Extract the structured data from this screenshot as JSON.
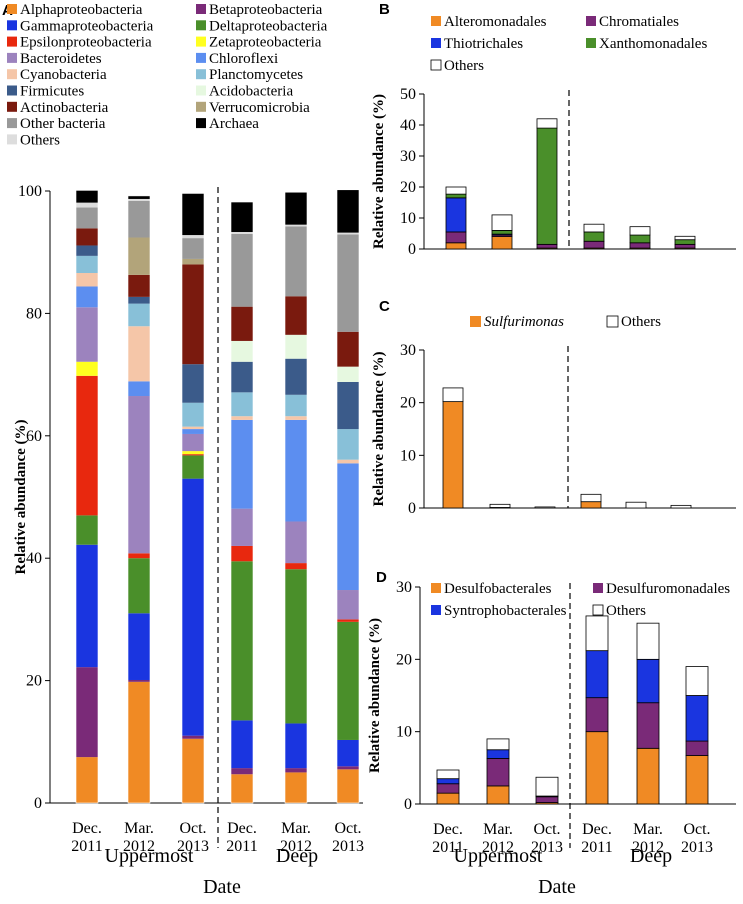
{
  "chart_data": [
    {
      "panel": "A",
      "type": "bar",
      "stacked": true,
      "ylabel": "Relative abundance (%)",
      "xlabel": "Date",
      "ylim": [
        0,
        100
      ],
      "yticks": [
        0,
        20,
        40,
        60,
        80,
        100
      ],
      "categories": [
        "Dec. 2011",
        "Mar. 2012",
        "Oct. 2013",
        "Dec. 2011",
        "Mar. 2012",
        "Oct. 2013"
      ],
      "category_lines": [
        [
          "Dec.",
          "2011"
        ],
        [
          "Mar.",
          "2012"
        ],
        [
          "Oct.",
          "2013"
        ],
        [
          "Dec.",
          "2011"
        ],
        [
          "Mar.",
          "2012"
        ],
        [
          "Oct.",
          "2013"
        ]
      ],
      "groups": [
        "Uppermost",
        "Deep"
      ],
      "series": [
        {
          "name": "Alphaproteobacteria",
          "color": "#f08a24",
          "values": [
            7.5,
            19.8,
            10.5,
            4.7,
            5.0,
            5.5
          ]
        },
        {
          "name": "Betaproteobacteria",
          "color": "#7a2a78",
          "values": [
            14.7,
            0.3,
            0.5,
            1.0,
            0.7,
            0.5
          ]
        },
        {
          "name": "Gammaproteobacteria",
          "color": "#1a35e0",
          "values": [
            20.0,
            10.9,
            42.0,
            7.8,
            7.3,
            4.3
          ]
        },
        {
          "name": "Deltaproteobacteria",
          "color": "#4a8f2a",
          "values": [
            4.8,
            9.0,
            3.8,
            26.0,
            25.2,
            19.3
          ]
        },
        {
          "name": "Epsilonproteobacteria",
          "color": "#e8280e",
          "values": [
            22.8,
            0.8,
            0.2,
            2.5,
            1.0,
            0.4
          ]
        },
        {
          "name": "Zetaproteobacteria",
          "color": "#ffff20",
          "values": [
            2.3,
            0.0,
            0.5,
            0.0,
            0.0,
            0.0
          ]
        },
        {
          "name": "Bacteroidetes",
          "color": "#9c83be",
          "values": [
            8.9,
            25.7,
            2.8,
            6.1,
            6.8,
            4.8
          ]
        },
        {
          "name": "Chloroflexi",
          "color": "#5c8ef0",
          "values": [
            3.4,
            2.4,
            0.8,
            14.5,
            16.6,
            20.7
          ]
        },
        {
          "name": "Cyanobacteria",
          "color": "#f5c6a8",
          "values": [
            2.2,
            9.0,
            0.4,
            0.6,
            0.6,
            0.6
          ]
        },
        {
          "name": "Planctomycetes",
          "color": "#88c0d8",
          "values": [
            2.8,
            3.7,
            3.9,
            3.9,
            3.5,
            5.0
          ]
        },
        {
          "name": "Firmicutes",
          "color": "#3b5b8a",
          "values": [
            1.7,
            1.1,
            6.3,
            5.0,
            5.9,
            7.7
          ]
        },
        {
          "name": "Acidobacteria",
          "color": "#e6f8e0",
          "values": [
            0.0,
            0.0,
            0.0,
            3.4,
            3.9,
            2.5
          ]
        },
        {
          "name": "Actinobacteria",
          "color": "#7a1a0e",
          "values": [
            2.8,
            3.6,
            16.3,
            5.6,
            6.3,
            5.7
          ]
        },
        {
          "name": "Verrucomicrobia",
          "color": "#b2a47a",
          "values": [
            0.0,
            6.1,
            0.9,
            0.0,
            0.0,
            0.0
          ]
        },
        {
          "name": "Other bacteria",
          "color": "#999999",
          "values": [
            3.4,
            6.0,
            3.4,
            11.9,
            11.4,
            15.9
          ]
        },
        {
          "name": "Others",
          "color": "#dddddd",
          "values": [
            0.8,
            0.3,
            0.5,
            0.3,
            0.3,
            0.3
          ]
        },
        {
          "name": "Archaea",
          "color": "#000000",
          "values": [
            2.0,
            0.5,
            6.8,
            4.9,
            5.3,
            7.0
          ]
        }
      ]
    },
    {
      "panel": "B",
      "type": "bar",
      "stacked": true,
      "ylabel": "Relative abundance (%)",
      "ylim": [
        0,
        50
      ],
      "yticks": [
        0,
        10,
        20,
        30,
        40,
        50
      ],
      "categories": [
        "Dec. 2011",
        "Mar. 2012",
        "Oct. 2013",
        "Dec. 2011",
        "Mar. 2012",
        "Oct. 2013"
      ],
      "series": [
        {
          "name": "Alteromonadales",
          "color": "#f08a24",
          "values": [
            2.0,
            4.0,
            0.3,
            0.3,
            0.3,
            0.3
          ]
        },
        {
          "name": "Chromatiales",
          "color": "#7a2a78",
          "values": [
            3.5,
            0.5,
            1.2,
            2.2,
            1.7,
            1.2
          ]
        },
        {
          "name": "Thiotrichales",
          "color": "#1a35e0",
          "values": [
            11.0,
            0.3,
            0.0,
            0.0,
            0.0,
            0.0
          ]
        },
        {
          "name": "Xanthomonadales",
          "color": "#4a8f2a",
          "values": [
            1.2,
            1.2,
            37.5,
            3.0,
            2.5,
            1.5
          ]
        },
        {
          "name": "Others",
          "color": "#ffffff",
          "values": [
            2.3,
            5.0,
            3.0,
            2.5,
            2.7,
            1.1
          ]
        }
      ]
    },
    {
      "panel": "C",
      "type": "bar",
      "stacked": true,
      "ylabel": "Relative abundance (%)",
      "ylim": [
        0,
        30
      ],
      "yticks": [
        0,
        10,
        20,
        30
      ],
      "categories": [
        "Dec. 2011",
        "Mar. 2012",
        "Oct. 2013",
        "Dec. 2011",
        "Mar. 2012",
        "Oct. 2013"
      ],
      "series": [
        {
          "name": "Sulfurimonas",
          "italic": true,
          "color": "#f08a24",
          "values": [
            20.2,
            0.1,
            0.0,
            1.2,
            0.0,
            0.0
          ]
        },
        {
          "name": "Others",
          "color": "#ffffff",
          "values": [
            2.6,
            0.6,
            0.2,
            1.4,
            1.1,
            0.5
          ]
        }
      ]
    },
    {
      "panel": "D",
      "type": "bar",
      "stacked": true,
      "ylabel": "Relative abundance (%)",
      "xlabel": "Date",
      "ylim": [
        0,
        30
      ],
      "yticks": [
        0,
        10,
        20,
        30
      ],
      "categories": [
        "Dec. 2011",
        "Mar. 2012",
        "Oct. 2013",
        "Dec. 2011",
        "Mar. 2012",
        "Oct. 2013"
      ],
      "category_lines": [
        [
          "Dec.",
          "2011"
        ],
        [
          "Mar.",
          "2012"
        ],
        [
          "Oct.",
          "2013"
        ],
        [
          "Dec.",
          "2011"
        ],
        [
          "Mar.",
          "2012"
        ],
        [
          "Oct.",
          "2013"
        ]
      ],
      "groups": [
        "Uppermost",
        "Deep"
      ],
      "series": [
        {
          "name": "Desulfobacterales",
          "color": "#f08a24",
          "values": [
            1.5,
            2.5,
            0.2,
            10.0,
            7.7,
            6.7
          ]
        },
        {
          "name": "Desulfuromonadales",
          "color": "#7a2a78",
          "values": [
            1.3,
            3.8,
            0.8,
            4.7,
            6.3,
            2.0
          ]
        },
        {
          "name": "Syntrophobacterales",
          "color": "#1a35e0",
          "values": [
            0.7,
            1.2,
            0.1,
            6.5,
            6.0,
            6.3
          ]
        },
        {
          "name": "Others",
          "color": "#ffffff",
          "values": [
            1.2,
            1.5,
            2.6,
            4.8,
            5.0,
            4.0
          ]
        }
      ]
    }
  ]
}
